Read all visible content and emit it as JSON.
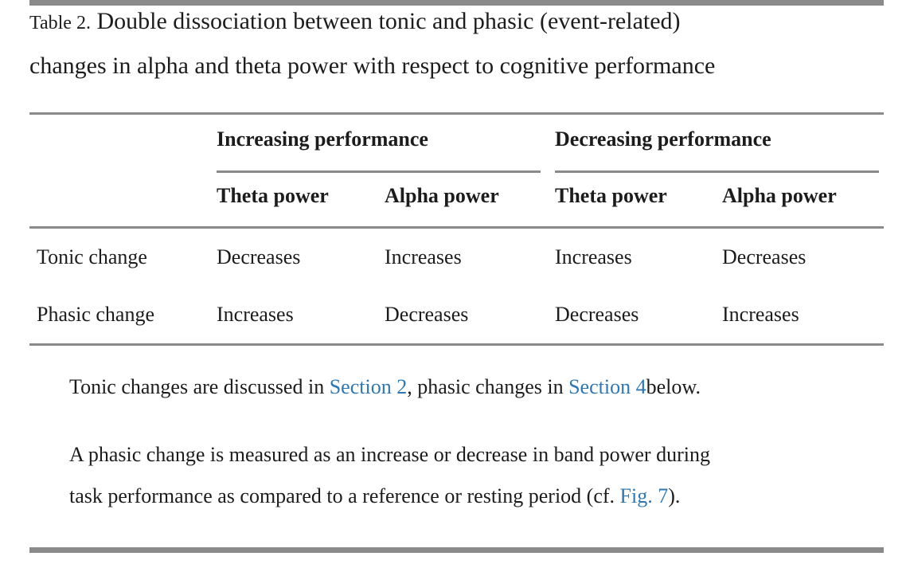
{
  "caption": {
    "label": "Table 2.",
    "line1": "Double dissociation between tonic and phasic (event-related)",
    "line2": "changes in alpha and theta power with respect to cognitive performance"
  },
  "table": {
    "group_headers": [
      {
        "label": "Increasing performance"
      },
      {
        "label": "Decreasing performance"
      }
    ],
    "sub_headers": [
      "Theta power",
      "Alpha power",
      "Theta power",
      "Alpha power"
    ],
    "rows": [
      {
        "label": "Tonic change",
        "values": [
          "Decreases",
          "Increases",
          "Increases",
          "Decreases"
        ]
      },
      {
        "label": "Phasic change",
        "values": [
          "Increases",
          "Decreases",
          "Decreases",
          "Increases"
        ]
      }
    ]
  },
  "notes": {
    "note1": {
      "text1": "Tonic changes are discussed in ",
      "link1": "Section 2",
      "text2": ", phasic changes in ",
      "link2": "Section 4",
      "text3": "below."
    },
    "note2": {
      "line1": "A phasic change is measured as an increase or decrease in band power during",
      "line2_text1": "task performance as compared to a reference or resting period (cf. ",
      "line2_link": "Fig. 7",
      "line2_text2": ")."
    }
  },
  "colors": {
    "text": "#1c1c1c",
    "link": "#2e77b2",
    "rule": "#8a8a8a"
  }
}
